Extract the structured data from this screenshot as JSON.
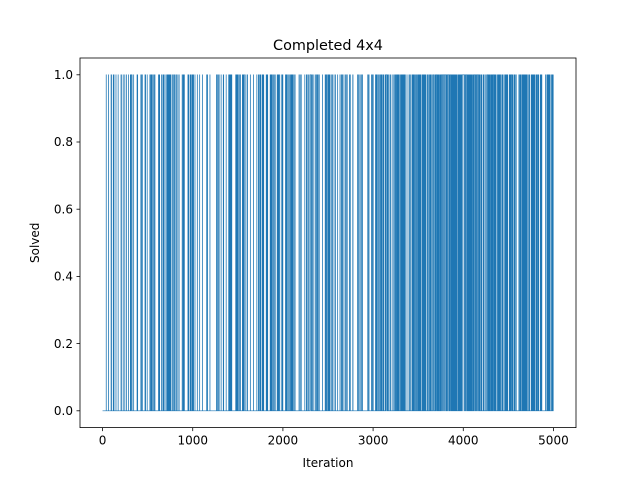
{
  "chart_data": {
    "type": "line",
    "title": "Completed 4x4",
    "xlabel": "Iteration",
    "ylabel": "Solved",
    "xlim": [
      -250,
      5250
    ],
    "ylim": [
      -0.05,
      1.05
    ],
    "xticks": [
      0,
      1000,
      2000,
      3000,
      4000,
      5000
    ],
    "yticks": [
      0.0,
      0.2,
      0.4,
      0.6,
      0.8,
      1.0
    ],
    "xtick_labels": [
      "0",
      "1000",
      "2000",
      "3000",
      "4000",
      "5000"
    ],
    "ytick_labels": [
      "0.0",
      "0.2",
      "0.4",
      "0.6",
      "0.8",
      "1.0"
    ],
    "grid": false,
    "line_color": "#1f77b4",
    "series": [
      {
        "x_start": 0,
        "x_end": 5000,
        "value_levels": [
          0,
          1
        ],
        "solved_density": [
          [
            0,
            0.16
          ],
          [
            250,
            0.18
          ],
          [
            500,
            0.2
          ],
          [
            750,
            0.16
          ],
          [
            900,
            0.2
          ],
          [
            1000,
            0.12
          ],
          [
            1200,
            0.12
          ],
          [
            1400,
            0.18
          ],
          [
            1600,
            0.1
          ],
          [
            1800,
            0.2
          ],
          [
            1950,
            0.35
          ],
          [
            2100,
            0.16
          ],
          [
            2300,
            0.14
          ],
          [
            2500,
            0.12
          ],
          [
            2700,
            0.14
          ],
          [
            2900,
            0.16
          ],
          [
            3050,
            0.24
          ],
          [
            3200,
            0.22
          ],
          [
            3400,
            0.24
          ],
          [
            3550,
            0.3
          ],
          [
            3650,
            0.5
          ],
          [
            3800,
            0.6
          ],
          [
            4000,
            0.58
          ],
          [
            4150,
            0.6
          ],
          [
            4300,
            0.4
          ],
          [
            4450,
            0.34
          ],
          [
            4600,
            0.3
          ],
          [
            4800,
            0.3
          ],
          [
            5000,
            0.32
          ]
        ]
      }
    ]
  }
}
